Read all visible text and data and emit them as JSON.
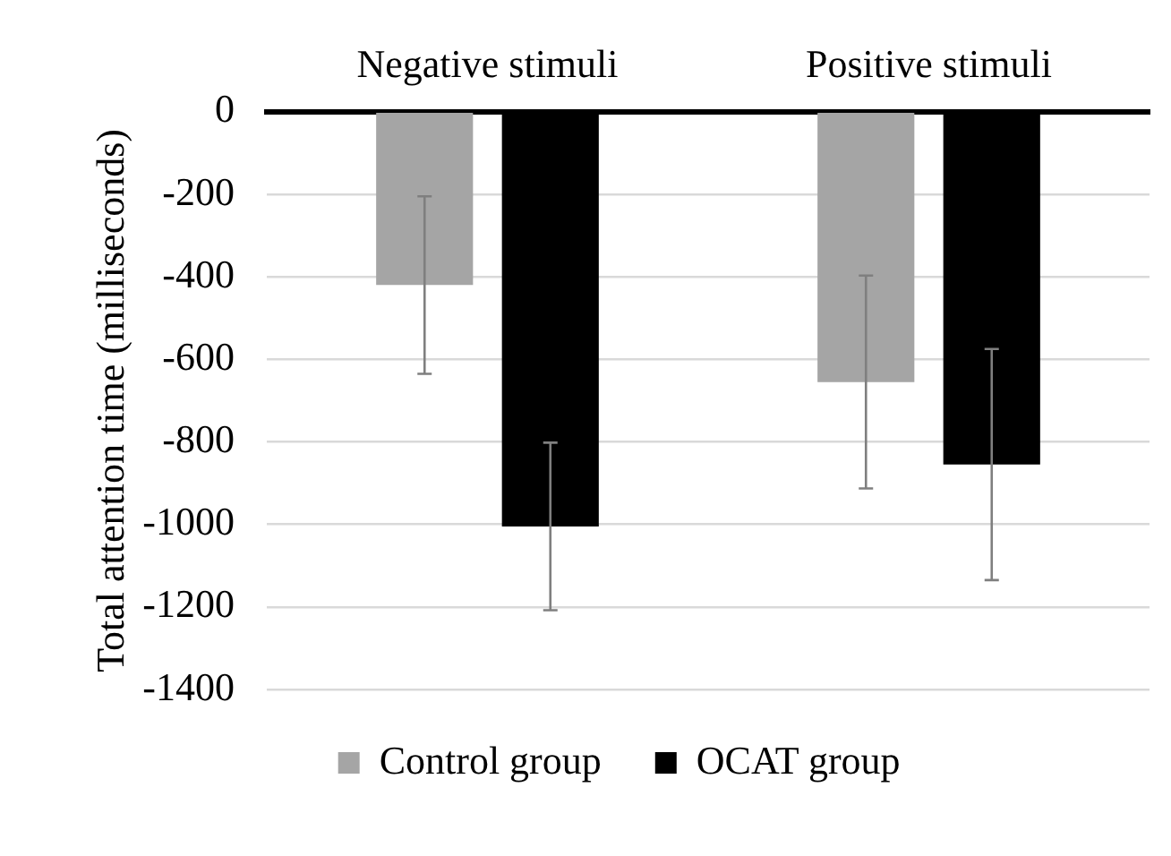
{
  "chart_data": {
    "type": "bar",
    "categories": [
      "Negative stimuli",
      "Positive stimuli"
    ],
    "series": [
      {
        "name": "Control group",
        "color": "#a5a5a5",
        "values": [
          -420,
          -655
        ],
        "errors": [
          215,
          258
        ]
      },
      {
        "name": "OCAT group",
        "color": "#000000",
        "values": [
          -1005,
          -855
        ],
        "errors": [
          203,
          280
        ]
      }
    ],
    "ylabel": "Total attention time (milliseconds)",
    "ylim": [
      -1400,
      0
    ],
    "yticks": [
      0,
      -200,
      -400,
      -600,
      -800,
      -1000,
      -1200,
      -1400
    ],
    "grid": "y",
    "legend": "bottom"
  }
}
